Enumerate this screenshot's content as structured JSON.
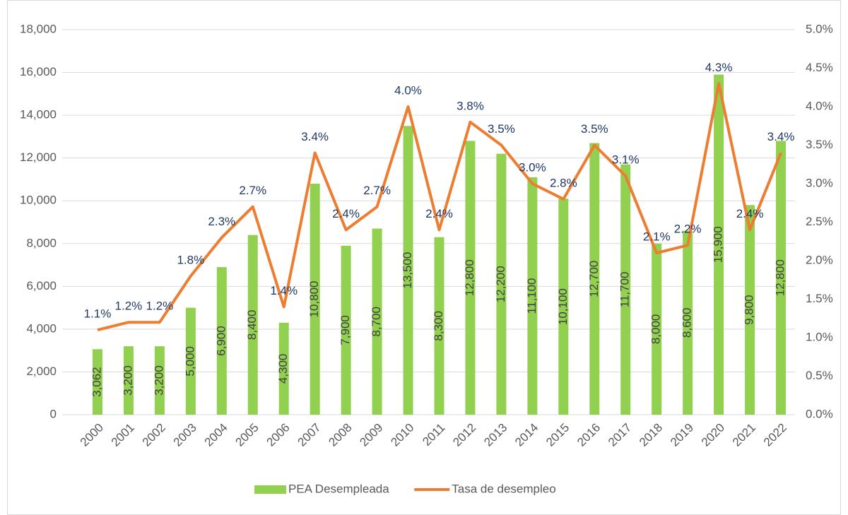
{
  "chart_data": {
    "type": "bar",
    "categories": [
      "2000",
      "2001",
      "2002",
      "2003",
      "2004",
      "2005",
      "2006",
      "2007",
      "2008",
      "2009",
      "2010",
      "2011",
      "2012",
      "2013",
      "2014",
      "2015",
      "2016",
      "2017",
      "2018",
      "2019",
      "2020",
      "2021",
      "2022"
    ],
    "series": [
      {
        "name": "PEA Desempleada",
        "type": "bar",
        "color": "#92d050",
        "values": [
          3062,
          3200,
          3200,
          5000,
          6900,
          8400,
          4300,
          10800,
          7900,
          8700,
          13500,
          8300,
          12800,
          12200,
          11100,
          10100,
          12700,
          11700,
          8000,
          8600,
          15900,
          9800,
          12800
        ],
        "value_labels": [
          "3,062",
          "3,200",
          "3,200",
          "5,000",
          "6,900",
          "8,400",
          "4,300",
          "10,800",
          "7,900",
          "8,700",
          "13,500",
          "8,300",
          "12,800",
          "12,200",
          "11,100",
          "10,100",
          "12,700",
          "11,700",
          "8,000",
          "8,600",
          "15,900",
          "9,800",
          "12,800"
        ]
      },
      {
        "name": "Tasa de desempleo",
        "type": "line",
        "axis": "y2",
        "color": "#ed7d31",
        "values": [
          1.1,
          1.2,
          1.2,
          1.8,
          2.3,
          2.7,
          1.4,
          3.4,
          2.4,
          2.7,
          4.0,
          2.4,
          3.8,
          3.5,
          3.0,
          2.8,
          3.5,
          3.1,
          2.1,
          2.2,
          4.3,
          2.4,
          3.4
        ],
        "value_labels": [
          "1.1%",
          "1.2%",
          "1.2%",
          "1.8%",
          "2.3%",
          "2.7%",
          "1.4%",
          "3.4%",
          "2.4%",
          "2.7%",
          "4.0%",
          "2.4%",
          "3.8%",
          "3.5%",
          "3.0%",
          "2.8%",
          "3.5%",
          "3.1%",
          "2.1%",
          "2.2%",
          "4.3%",
          "2.4%",
          "3.4%"
        ]
      }
    ],
    "ylim": [
      0,
      18000
    ],
    "yticks": [
      0,
      {
        "value": 2000,
        "label": "2,000"
      },
      {
        "value": 4000,
        "label": "4,000"
      },
      {
        "value": 6000,
        "label": "6,000"
      },
      {
        "value": 8000,
        "label": "8,000"
      },
      {
        "value": 10000,
        "label": "10,000"
      },
      {
        "value": 12000,
        "label": "12,000"
      },
      {
        "value": 14000,
        "label": "14,000"
      },
      {
        "value": 16000,
        "label": "16,000"
      },
      {
        "value": 18000,
        "label": "18,000"
      }
    ],
    "y2lim": [
      0,
      5
    ],
    "y2ticks": [
      {
        "value": 0,
        "label": "0.0%"
      },
      {
        "value": 0.5,
        "label": "0.5%"
      },
      {
        "value": 1,
        "label": "1.0%"
      },
      {
        "value": 1.5,
        "label": "1.5%"
      },
      {
        "value": 2,
        "label": "2.0%"
      },
      {
        "value": 2.5,
        "label": "2.5%"
      },
      {
        "value": 3,
        "label": "3.0%"
      },
      {
        "value": 3.5,
        "label": "3.5%"
      },
      {
        "value": 4,
        "label": "4.0%"
      },
      {
        "value": 4.5,
        "label": "4.5%"
      },
      {
        "value": 5,
        "label": "5.0%"
      }
    ],
    "grid": true,
    "legend": "bottom"
  }
}
